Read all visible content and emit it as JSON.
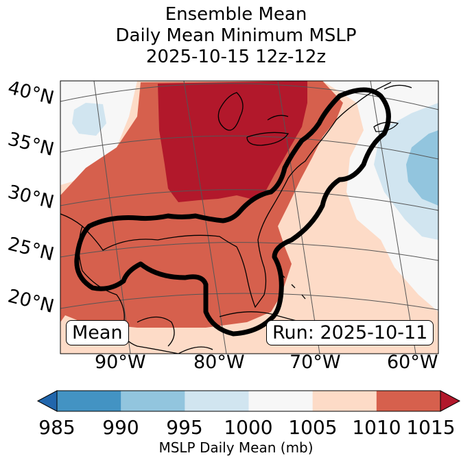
{
  "title": {
    "line1": "Ensemble Mean",
    "line2": "Daily Mean Minimum MSLP",
    "line3": "2025-10-15 12z-12z"
  },
  "map": {
    "lat_labels": [
      "40°N",
      "35°N",
      "30°N",
      "25°N",
      "20°N"
    ],
    "lon_labels": [
      "90°W",
      "80°W",
      "70°W",
      "60°W"
    ],
    "mean_label": "Mean",
    "run_label": "Run: 2025-10-11",
    "fill_colors": {
      "c985": "#2166ac",
      "c990": "#4393c3",
      "c995": "#92c5de",
      "c1000": "#d1e5f0",
      "c1005": "#f7f7f7",
      "c1010": "#fddbc7",
      "c1015": "#d6604d",
      "over": "#b2182b"
    }
  },
  "colorbar": {
    "ticks": [
      "985",
      "990",
      "995",
      "1000",
      "1005",
      "1010",
      "1015"
    ],
    "label": "MSLP Daily Mean (mb)",
    "colors": [
      "#4393c3",
      "#92c5de",
      "#d1e5f0",
      "#f7f7f7",
      "#fddbc7",
      "#d6604d"
    ],
    "under_color": "#2166ac",
    "over_color": "#b2182b"
  }
}
